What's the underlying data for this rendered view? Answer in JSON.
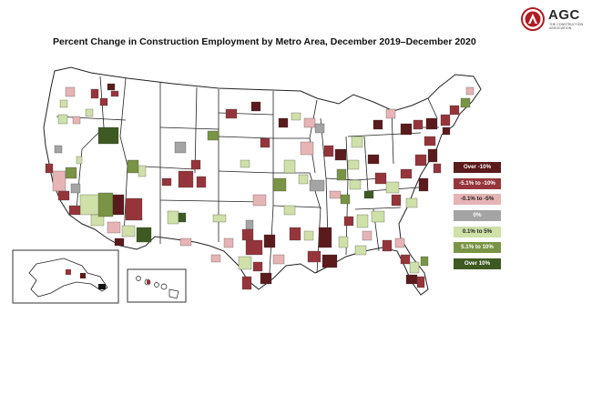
{
  "title": "Percent Change in Construction Employment by Metro Area, December 2019–December 2020",
  "logo": {
    "wordmark": "AGC",
    "subtitle": "THE CONSTRUCTION ASSOCIATION"
  },
  "legend": [
    {
      "label": "Over -10%",
      "color": "#5b1a1c",
      "text_color": "#ffffff"
    },
    {
      "label": "-5.1% to -10%",
      "color": "#95353b",
      "text_color": "#ffffff"
    },
    {
      "label": "-0.1% to -5%",
      "color": "#e7b4b6",
      "text_color": "#222222"
    },
    {
      "label": "0%",
      "color": "#a4a4a4",
      "text_color": "#ffffff"
    },
    {
      "label": "0.1% to 5%",
      "color": "#cfe0a8",
      "text_color": "#222222"
    },
    {
      "label": "5.1% to 10%",
      "color": "#799444",
      "text_color": "#ffffff"
    },
    {
      "label": "Over 10%",
      "color": "#3e5a22",
      "text_color": "#ffffff"
    }
  ],
  "colors": {
    "state_fill": "#ffffff",
    "state_border": "#222222"
  }
}
